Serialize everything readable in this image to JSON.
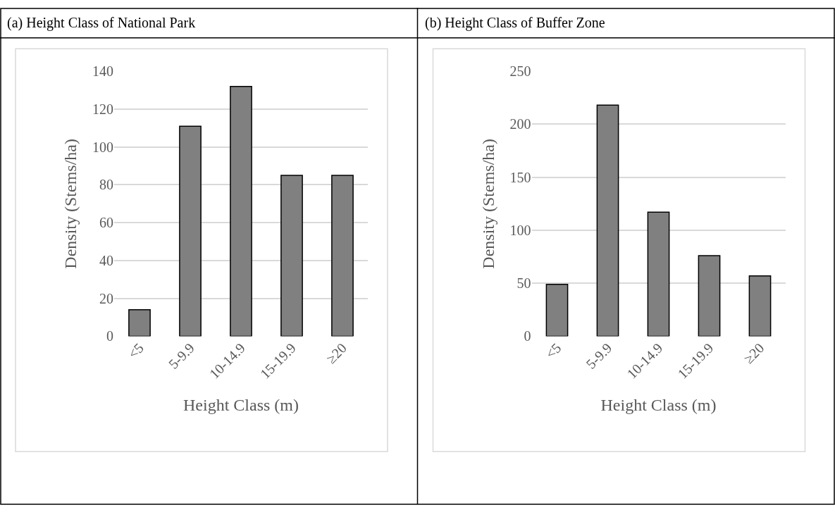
{
  "chart_data": [
    {
      "type": "bar",
      "title": "(a) Height Class of National Park",
      "xlabel": "Height Class (m)",
      "ylabel": "Density (Stems/ha)",
      "categories": [
        "<5",
        "5-9.9",
        "10-14.9",
        "15-19.9",
        "≥20"
      ],
      "values": [
        14,
        111,
        132,
        85,
        85
      ],
      "color": "#808080",
      "ylim": [
        0,
        140
      ],
      "yticks": [
        0,
        20,
        40,
        60,
        80,
        100,
        120,
        140
      ],
      "grid": "y"
    },
    {
      "type": "bar",
      "title": "(b) Height Class of Buffer Zone",
      "xlabel": "Height Class (m)",
      "ylabel": "Density (Stems/ha)",
      "categories": [
        "<5",
        "5-9.9",
        "10-14.9",
        "15-19.9",
        "≥20"
      ],
      "values": [
        49,
        218,
        117,
        76,
        57
      ],
      "color": "#808080",
      "ylim": [
        0,
        250
      ],
      "yticks": [
        0,
        50,
        100,
        150,
        200,
        250
      ],
      "grid": "y"
    }
  ]
}
